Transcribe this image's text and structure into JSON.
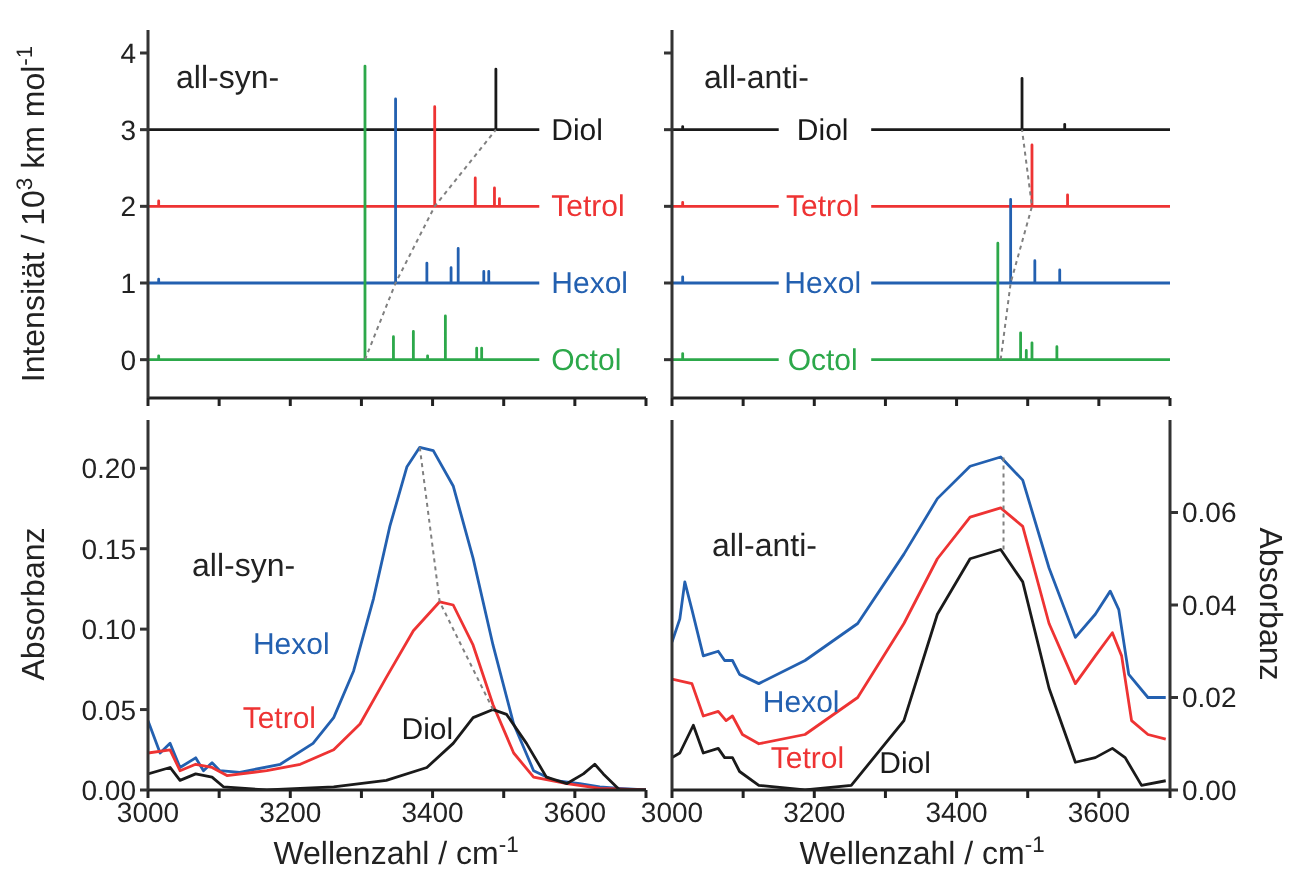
{
  "chart_data": [
    {
      "type": "line",
      "ylabel": "Intensität / 10$^{3}$ km mol$^{-1}$",
      "annotations": [
        "all-syn-"
      ],
      "xlim": [
        3000,
        3700
      ],
      "xticks": [
        3000,
        3100,
        3200,
        3300,
        3400,
        3500,
        3600,
        3700
      ],
      "ylim": [
        -0.5,
        4.3
      ],
      "yticks": [
        0,
        1,
        2,
        3,
        4
      ],
      "tick_labels": "y",
      "marker": "none",
      "line_style": "solid",
      "series": [
        {
          "name": "Diol",
          "color": "#1a1a1a",
          "x": [
            3000,
            3489,
            3489,
            3489,
            3550
          ],
          "values": [
            3,
            3,
            3.79,
            3,
            3
          ]
        },
        {
          "name": "Tetrol",
          "color": "#ee3333",
          "x": [
            3000,
            3015,
            3015,
            3015,
            3403,
            3403,
            3403,
            3460,
            3460,
            3460,
            3487,
            3487,
            3487,
            3494,
            3494,
            3494,
            3550
          ],
          "values": [
            2,
            2,
            2.07,
            2,
            2,
            3.3,
            2,
            2,
            2.37,
            2,
            2,
            2.24,
            2,
            2,
            2.1,
            2,
            2
          ]
        },
        {
          "name": "Hexol",
          "color": "#2360b0",
          "x": [
            3000,
            3015,
            3015,
            3015,
            3348,
            3348,
            3348,
            3392,
            3392,
            3392,
            3426,
            3426,
            3426,
            3436,
            3436,
            3436,
            3472,
            3472,
            3472,
            3479,
            3479,
            3479,
            3550
          ],
          "values": [
            1,
            1,
            1.05,
            1,
            1,
            3.4,
            1,
            1,
            1.26,
            1,
            1,
            1.2,
            1,
            1,
            1.45,
            1,
            1,
            1.15,
            1,
            1,
            1.15,
            1,
            1
          ]
        },
        {
          "name": "Octol",
          "color": "#2ca84a",
          "x": [
            3000,
            3015,
            3015,
            3015,
            3305,
            3305,
            3305,
            3345,
            3345,
            3345,
            3373,
            3373,
            3373,
            3393,
            3393,
            3393,
            3418,
            3418,
            3418,
            3462,
            3462,
            3462,
            3469,
            3469,
            3469,
            3550
          ],
          "values": [
            0,
            0,
            0.05,
            0,
            0,
            3.83,
            0,
            0,
            0.3,
            0,
            0,
            0.37,
            0,
            0,
            0.05,
            0,
            0,
            0.57,
            0,
            0,
            0.15,
            0,
            0,
            0.15,
            0,
            0
          ]
        },
        {
          "color": "#808080",
          "line_style": "dotted",
          "x": [
            3305,
            3348,
            3403,
            3489
          ],
          "values": [
            0,
            1,
            2,
            3
          ]
        }
      ]
    },
    {
      "type": "line",
      "annotations": [
        "all-anti-"
      ],
      "xlim": [
        3000,
        3700
      ],
      "xticks": [
        3000,
        3100,
        3200,
        3300,
        3400,
        3500,
        3600,
        3700
      ],
      "ylim": [
        -0.5,
        4.3
      ],
      "yticks": [
        0,
        1,
        2,
        3,
        4
      ],
      "tick_labels": false,
      "marker": "none",
      "line_style": "solid",
      "series": [
        {
          "name": "Diol",
          "color": "#1a1a1a",
          "x": [
            3000,
            3015,
            3015,
            3015,
            3150,
            3200,
            3280,
            3492,
            3492,
            3492,
            3552,
            3552,
            3552,
            3700
          ],
          "values": [
            3,
            3,
            3.04,
            3,
            3,
            null,
            3,
            3,
            3.67,
            3,
            3,
            3.07,
            3,
            3
          ]
        },
        {
          "name": "Tetrol",
          "color": "#ee3333",
          "x": [
            3000,
            3015,
            3015,
            3015,
            3150,
            3200,
            3280,
            3506,
            3506,
            3506,
            3556,
            3556,
            3556,
            3700
          ],
          "values": [
            2,
            2,
            2.05,
            2,
            2,
            null,
            2,
            2,
            2.8,
            2,
            2,
            2.15,
            2,
            2
          ]
        },
        {
          "name": "Hexol",
          "color": "#2360b0",
          "x": [
            3000,
            3015,
            3015,
            3015,
            3150,
            3200,
            3280,
            3476,
            3476,
            3476,
            3510,
            3510,
            3510,
            3545,
            3545,
            3545,
            3700
          ],
          "values": [
            1,
            1,
            1.08,
            1,
            1,
            null,
            1,
            1,
            2.09,
            1,
            1,
            1.29,
            1,
            1,
            1.17,
            1,
            1
          ]
        },
        {
          "name": "Octol",
          "color": "#2ca84a",
          "x": [
            3000,
            3015,
            3015,
            3015,
            3150,
            3200,
            3280,
            3458,
            3458,
            3458,
            3490,
            3490,
            3490,
            3498,
            3498,
            3498,
            3506,
            3506,
            3506,
            3541,
            3541,
            3541,
            3700
          ],
          "values": [
            0,
            0,
            0.08,
            0,
            0,
            null,
            0,
            0,
            1.52,
            0,
            0,
            0.35,
            0,
            0,
            0.12,
            0,
            0,
            0.22,
            0,
            0,
            0.17,
            0,
            0
          ]
        },
        {
          "color": "#808080",
          "line_style": "dotted",
          "x": [
            3462,
            3476,
            3506,
            3492
          ],
          "values": [
            0,
            1,
            2,
            3
          ]
        }
      ]
    },
    {
      "type": "line",
      "xlabel": "Wellenzahl / cm$^{-1}$",
      "ylabel": "Absorbanz",
      "annotations": [
        "all-syn-"
      ],
      "xlim": [
        3000,
        3700
      ],
      "xticks": [
        3000,
        {
          "value": 3100,
          "label": null
        },
        3200,
        {
          "value": 3300,
          "label": null
        },
        3400,
        {
          "value": 3500,
          "label": null
        },
        3600,
        {
          "value": 3700,
          "label": null
        }
      ],
      "ylim": [
        0,
        0.23
      ],
      "yticks": [
        {
          "value": 0,
          "label": "0.00"
        },
        0.05,
        {
          "value": 0.1,
          "label": "0.10"
        },
        0.15,
        {
          "value": 0.2,
          "label": "0.20"
        }
      ],
      "marker": "none",
      "line_style": "solid",
      "series": [
        {
          "name": "Hexol",
          "color": "#2360b0",
          "x": [
            3000,
            3017,
            3031,
            3045,
            3067,
            3078,
            3090,
            3101,
            3129,
            3186,
            3232,
            3261,
            3289,
            3317,
            3340,
            3364,
            3382,
            3401,
            3429,
            3457,
            3485,
            3514,
            3542,
            3570,
            3607,
            3635,
            3663,
            3700
          ],
          "values": [
            0.043,
            0.023,
            0.029,
            0.014,
            0.02,
            0.012,
            0.017,
            0.012,
            0.011,
            0.016,
            0.029,
            0.045,
            0.074,
            0.119,
            0.164,
            0.201,
            0.213,
            0.211,
            0.189,
            0.144,
            0.09,
            0.041,
            0.012,
            0.006,
            0.004,
            0.002,
            0.001,
            0
          ]
        },
        {
          "name": "Tetrol",
          "color": "#ee3333",
          "x": [
            3000,
            3031,
            3045,
            3067,
            3090,
            3111,
            3167,
            3214,
            3261,
            3298,
            3335,
            3373,
            3410,
            3429,
            3457,
            3485,
            3514,
            3542,
            3589,
            3635,
            3700
          ],
          "values": [
            0.023,
            0.025,
            0.012,
            0.016,
            0.014,
            0.009,
            0.012,
            0.016,
            0.025,
            0.041,
            0.07,
            0.099,
            0.117,
            0.115,
            0.09,
            0.053,
            0.023,
            0.008,
            0.004,
            0.001,
            0
          ]
        },
        {
          "name": "Diol",
          "color": "#1a1a1a",
          "x": [
            3000,
            3031,
            3045,
            3067,
            3090,
            3106,
            3167,
            3261,
            3335,
            3392,
            3429,
            3457,
            3485,
            3504,
            3532,
            3560,
            3589,
            3612,
            3628,
            3640,
            3663,
            3700
          ],
          "values": [
            0.01,
            0.014,
            0.006,
            0.01,
            0.008,
            0.002,
            0,
            0.002,
            0.006,
            0.014,
            0.029,
            0.045,
            0.05,
            0.047,
            0.029,
            0.008,
            0.004,
            0.01,
            0.016,
            0.01,
            0,
            0
          ]
        },
        {
          "color": "#808080",
          "line_style": "dotted",
          "x": [
            3382,
            3410,
            3485
          ],
          "values": [
            0.213,
            0.117,
            0.05
          ]
        }
      ]
    },
    {
      "type": "line",
      "xlabel": "Wellenzahl / cm$^{-1}$",
      "y2label": "Absorbanz",
      "annotations": [
        "all-anti-"
      ],
      "xlim": [
        3000,
        3700
      ],
      "xticks": [
        3000,
        {
          "value": 3100,
          "label": null
        },
        3200,
        {
          "value": 3300,
          "label": null
        },
        3400,
        {
          "value": 3500,
          "label": null
        },
        3600,
        {
          "value": 3700,
          "label": null
        }
      ],
      "y2lim": [
        0,
        0.08
      ],
      "y2ticks": [
        {
          "value": 0,
          "label": "0.00"
        },
        0.02,
        0.04,
        0.06
      ],
      "marker": "none",
      "line_style": "solid",
      "series": [
        {
          "name": "Hexol",
          "color": "#2360b0",
          "axis": "y2",
          "x": [
            3000,
            3011,
            3018,
            3028,
            3044,
            3065,
            3074,
            3085,
            3095,
            3122,
            3187,
            3261,
            3326,
            3373,
            3419,
            3462,
            3493,
            3530,
            3567,
            3595,
            3616,
            3628,
            3642,
            3669,
            3694
          ],
          "values": [
            0.032,
            0.037,
            0.045,
            0.039,
            0.029,
            0.03,
            0.028,
            0.028,
            0.025,
            0.023,
            0.028,
            0.036,
            0.051,
            0.063,
            0.07,
            0.072,
            0.067,
            0.048,
            0.033,
            0.038,
            0.043,
            0.039,
            0.025,
            0.02,
            0.02
          ]
        },
        {
          "name": "Tetrol",
          "color": "#ee3333",
          "axis": "y2",
          "x": [
            3000,
            3028,
            3044,
            3065,
            3076,
            3085,
            3099,
            3122,
            3187,
            3261,
            3326,
            3373,
            3419,
            3462,
            3493,
            3530,
            3567,
            3595,
            3619,
            3632,
            3646,
            3669,
            3694
          ],
          "values": [
            0.024,
            0.023,
            0.016,
            0.017,
            0.015,
            0.016,
            0.012,
            0.01,
            0.012,
            0.02,
            0.036,
            0.05,
            0.059,
            0.061,
            0.057,
            0.036,
            0.023,
            0.029,
            0.034,
            0.029,
            0.015,
            0.012,
            0.011
          ]
        },
        {
          "name": "Diol",
          "color": "#1a1a1a",
          "axis": "y2",
          "x": [
            3000,
            3011,
            3030,
            3044,
            3065,
            3074,
            3085,
            3095,
            3122,
            3187,
            3252,
            3326,
            3373,
            3419,
            3462,
            3493,
            3530,
            3567,
            3595,
            3619,
            3637,
            3660,
            3694
          ],
          "values": [
            0.007,
            0.008,
            0.014,
            0.008,
            0.009,
            0.007,
            0.007,
            0.004,
            0.001,
            0,
            0.001,
            0.015,
            0.038,
            0.05,
            0.052,
            0.045,
            0.022,
            0.006,
            0.007,
            0.009,
            0.007,
            0.001,
            0.002
          ]
        },
        {
          "color": "#808080",
          "line_style": "dotted",
          "axis": "y2",
          "x": [
            3466,
            3466
          ],
          "values": [
            0.052,
            0.072
          ]
        }
      ]
    }
  ]
}
